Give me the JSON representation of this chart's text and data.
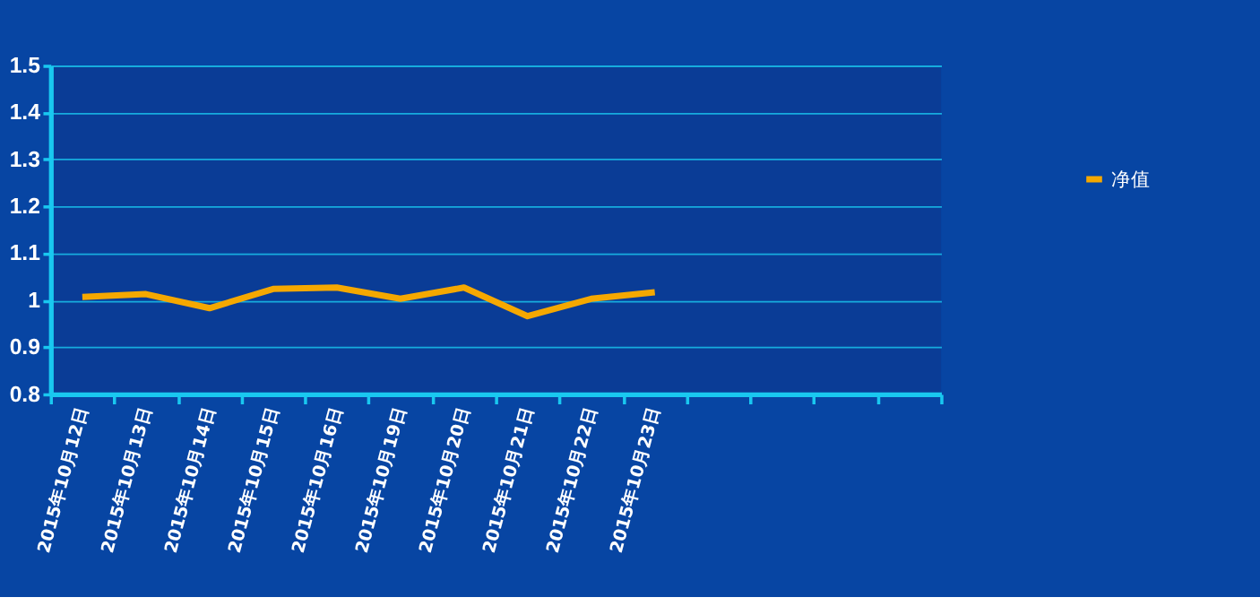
{
  "chart_data": {
    "type": "line",
    "categories": [
      "2015年10月12日",
      "2015年10月13日",
      "2015年10月14日",
      "2015年10月15日",
      "2015年10月16日",
      "2015年10月19日",
      "2015年10月20日",
      "2015年10月21日",
      "2015年10月22日",
      "2015年10月23日",
      null,
      null,
      null,
      null
    ],
    "series": [
      {
        "name": "净值",
        "color": "#f5a800",
        "values": [
          1.007,
          1.013,
          0.983,
          1.024,
          1.027,
          1.003,
          1.027,
          0.966,
          1.003,
          1.017,
          null,
          null,
          null,
          null
        ]
      }
    ],
    "ylim": [
      0.8,
      1.5
    ],
    "yticks": [
      0.8,
      0.9,
      1,
      1.1,
      1.2,
      1.3,
      1.4,
      1.5
    ],
    "grid": "y",
    "legend": "right",
    "marker": "none",
    "line_style": "solid"
  }
}
